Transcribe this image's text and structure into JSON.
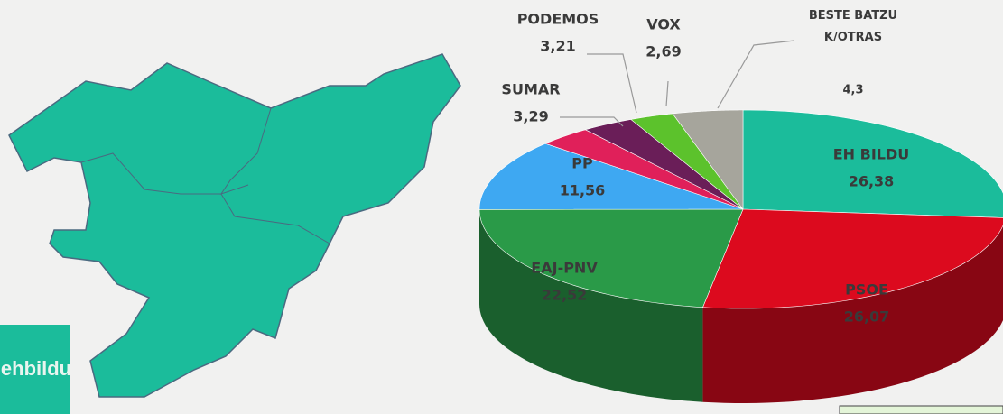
{
  "chart_data": {
    "type": "pie",
    "categories": [
      "EH BILDU",
      "PSOE",
      "EAJ-PNV",
      "PP",
      "SUMAR",
      "PODEMOS",
      "VOX",
      "BESTE BATZUK/OTRAS"
    ],
    "values": [
      26.38,
      26.07,
      22.52,
      11.56,
      3.29,
      3.21,
      2.69,
      4.3
    ],
    "value_labels": [
      "26,38",
      "26,07",
      "22,52",
      "11,56",
      "3,29",
      "3,21",
      "2,69",
      "4,3"
    ],
    "colors": [
      "#1bbc9b",
      "#dc0a1e",
      "#2a9a48",
      "#3ea8f2",
      "#e0205a",
      "#6a1e58",
      "#5cc22c",
      "#a6a59c"
    ]
  },
  "logo": "ehbildu"
}
